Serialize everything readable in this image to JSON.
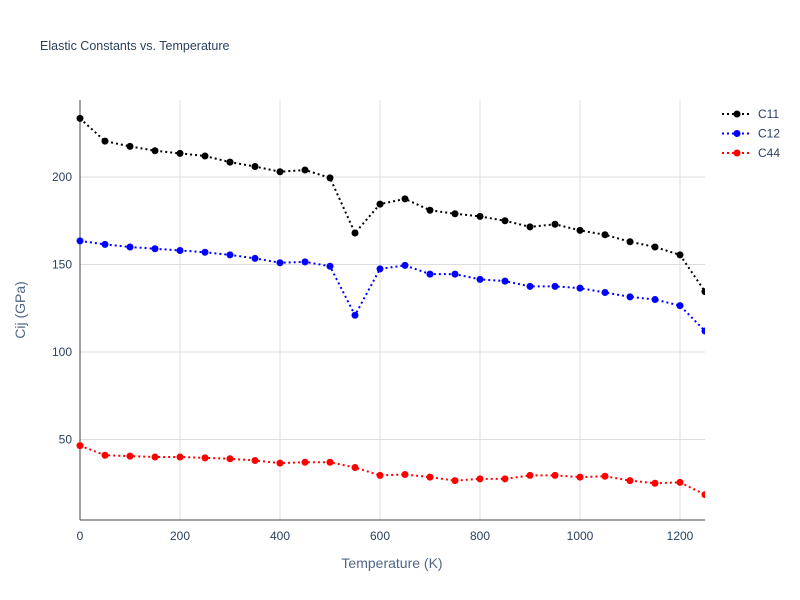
{
  "chart_data": {
    "type": "line",
    "title": "Elastic Constants vs. Temperature",
    "xlabel": "Temperature (K)",
    "ylabel": "Cij (GPa)",
    "xlim": [
      0,
      1250
    ],
    "ylim": [
      4,
      244
    ],
    "xticks": [
      0,
      200,
      400,
      600,
      800,
      1000,
      1200
    ],
    "yticks": [
      50,
      100,
      150,
      200
    ],
    "grid": true,
    "legend_position": "top-right",
    "line_style": "dotted",
    "markers": true,
    "x": [
      0,
      50,
      100,
      150,
      200,
      250,
      300,
      350,
      400,
      450,
      500,
      550,
      600,
      650,
      700,
      750,
      800,
      850,
      900,
      950,
      1000,
      1050,
      1100,
      1150,
      1200,
      1250
    ],
    "series": [
      {
        "name": "C11",
        "color": "#000000",
        "values": [
          233.5,
          220.5,
          217.5,
          215.0,
          213.5,
          212.0,
          208.5,
          206.0,
          203.0,
          204.0,
          199.5,
          168.0,
          184.5,
          187.5,
          181.0,
          179.0,
          177.5,
          175.0,
          171.5,
          173.0,
          169.5,
          167.0,
          163.0,
          160.0,
          155.5,
          134.5
        ]
      },
      {
        "name": "C12",
        "color": "#0000ff",
        "values": [
          163.5,
          161.5,
          160.0,
          159.0,
          158.0,
          157.0,
          155.5,
          153.5,
          151.0,
          151.5,
          149.0,
          121.0,
          147.5,
          149.5,
          144.5,
          144.5,
          141.5,
          140.5,
          137.5,
          137.5,
          136.5,
          134.0,
          131.5,
          130.0,
          126.5,
          112.0
        ]
      },
      {
        "name": "C44",
        "color": "#ff0000",
        "values": [
          46.5,
          41.0,
          40.5,
          40.0,
          40.0,
          39.5,
          39.0,
          38.0,
          36.5,
          37.0,
          37.0,
          34.0,
          29.5,
          30.0,
          28.5,
          26.5,
          27.5,
          27.5,
          29.5,
          29.5,
          28.5,
          29.0,
          26.5,
          25.0,
          25.5,
          18.5
        ]
      }
    ]
  }
}
